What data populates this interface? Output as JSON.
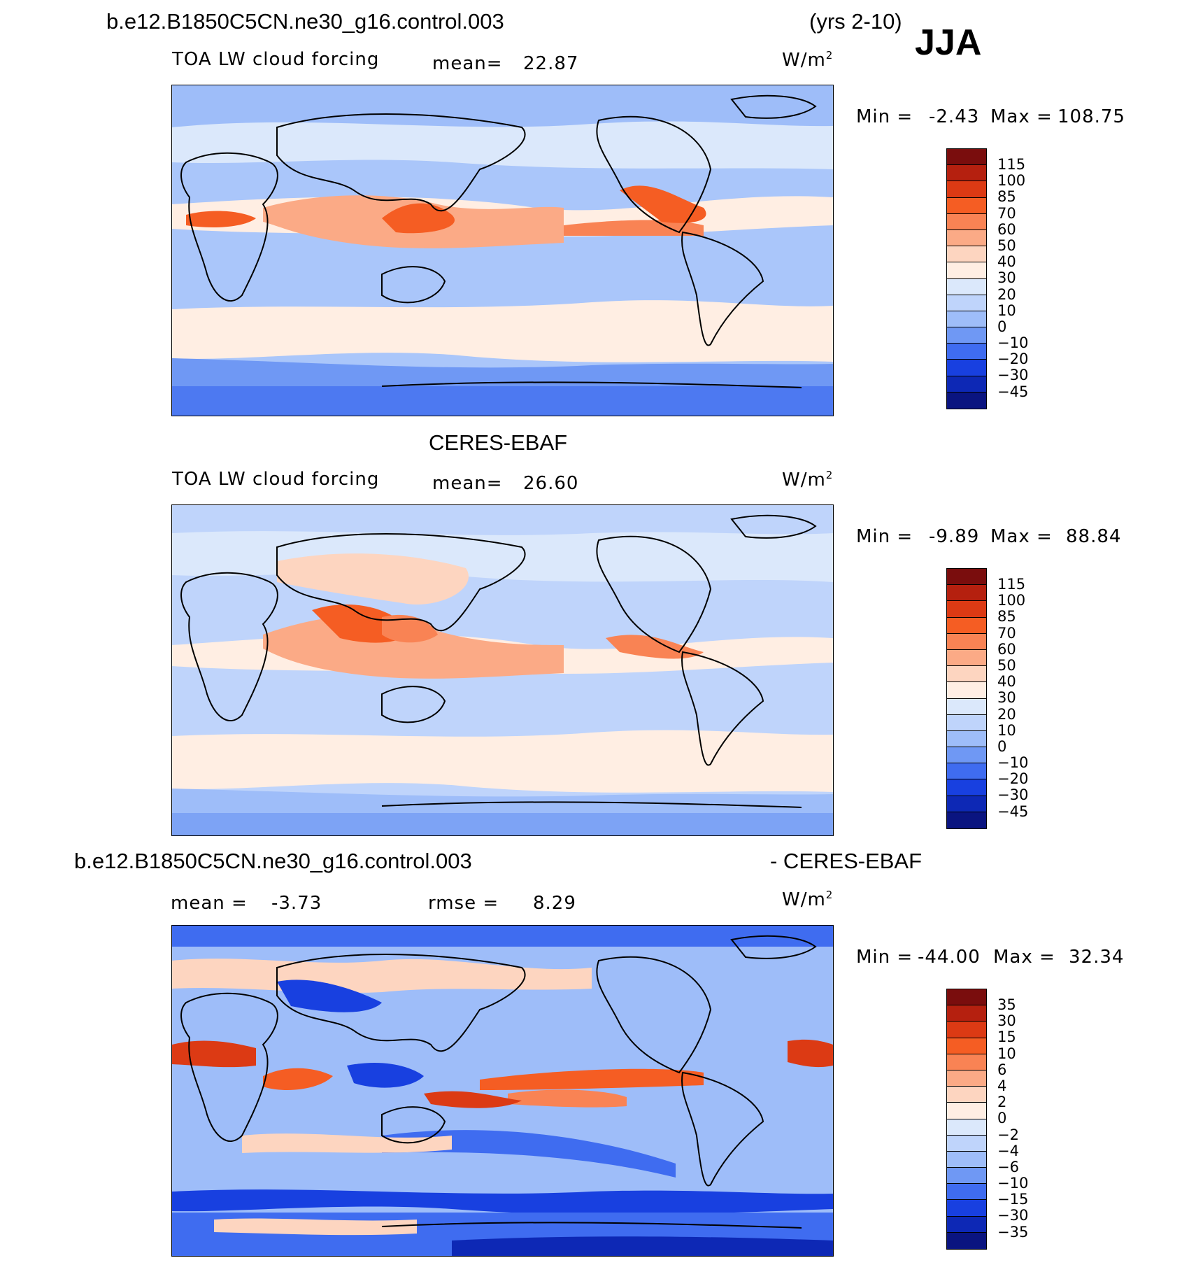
{
  "header": {
    "case_name": "b.e12.B1850C5CN.ne30_g16.control.003",
    "years": "(yrs 2-10)",
    "season": "JJA"
  },
  "panels": [
    {
      "name": "model",
      "title": "",
      "variable": "TOA LW cloud forcing",
      "mean_label": "mean=",
      "mean_value": "22.87",
      "units": "W/m",
      "units_exp": "2",
      "min_label": "Min =",
      "min_value": "-2.43",
      "max_label": "Max =",
      "max_value": "108.75",
      "colorbar_labels": [
        "115",
        "100",
        "85",
        "70",
        "60",
        "50",
        "40",
        "30",
        "20",
        "10",
        "0",
        "−10",
        "−20",
        "−30",
        "−45"
      ]
    },
    {
      "name": "obs",
      "title": "CERES-EBAF",
      "variable": "TOA LW cloud forcing",
      "mean_label": "mean=",
      "mean_value": "26.60",
      "units": "W/m",
      "units_exp": "2",
      "min_label": "Min =",
      "min_value": "-9.89",
      "max_label": "Max =",
      "max_value": "88.84",
      "colorbar_labels": [
        "115",
        "100",
        "85",
        "70",
        "60",
        "50",
        "40",
        "30",
        "20",
        "10",
        "0",
        "−10",
        "−20",
        "−30",
        "−45"
      ]
    },
    {
      "name": "difference",
      "title_left": "b.e12.B1850C5CN.ne30_g16.control.003",
      "title_right": "- CERES-EBAF",
      "mean_label": "mean =",
      "mean_value": "-3.73",
      "rmse_label": "rmse =",
      "rmse_value": "8.29",
      "units": "W/m",
      "units_exp": "2",
      "min_label": "Min =",
      "min_value": "-44.00",
      "max_label": "Max =",
      "max_value": "32.34",
      "colorbar_labels": [
        "35",
        "30",
        "15",
        "10",
        "6",
        "4",
        "2",
        "0",
        "−2",
        "−4",
        "−6",
        "−10",
        "−15",
        "−30",
        "−35"
      ]
    }
  ],
  "colors": {
    "palette": [
      "#7a0d0d",
      "#b5200f",
      "#dc3a14",
      "#f55d23",
      "#f98354",
      "#fbaa86",
      "#fdd5c0",
      "#ffeee3",
      "#dbe8fb",
      "#bfd4fb",
      "#9ebdf9",
      "#6f98f4",
      "#3f6cf0",
      "#1840e0",
      "#0d28b5",
      "#0a1480"
    ]
  }
}
